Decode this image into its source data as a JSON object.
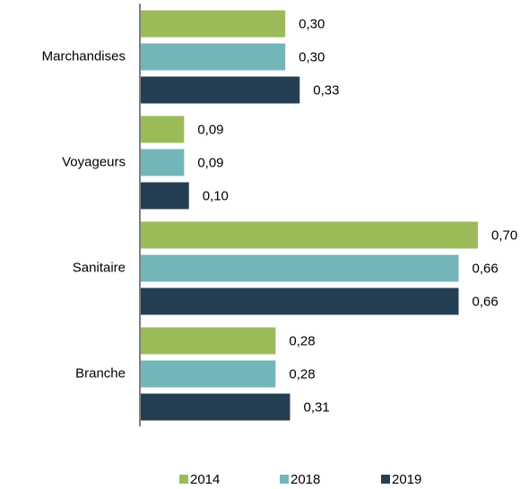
{
  "chart_data": {
    "type": "bar",
    "orientation": "horizontal",
    "categories": [
      "Marchandises",
      "Voyageurs",
      "Sanitaire",
      "Branche"
    ],
    "series": [
      {
        "name": "2014",
        "color": "#9bbb59",
        "values": [
          0.3,
          0.09,
          0.7,
          0.28
        ],
        "value_labels": [
          "0,30",
          "0,09",
          "0,70",
          "0,28"
        ]
      },
      {
        "name": "2018",
        "color": "#72b6b9",
        "values": [
          0.3,
          0.09,
          0.66,
          0.28
        ],
        "value_labels": [
          "0,30",
          "0,09",
          "0,66",
          "0,28"
        ]
      },
      {
        "name": "2019",
        "color": "#243f54",
        "values": [
          0.33,
          0.1,
          0.66,
          0.31
        ],
        "value_labels": [
          "0,33",
          "0,10",
          "0,66",
          "0,31"
        ]
      }
    ],
    "legend": "bottom"
  }
}
